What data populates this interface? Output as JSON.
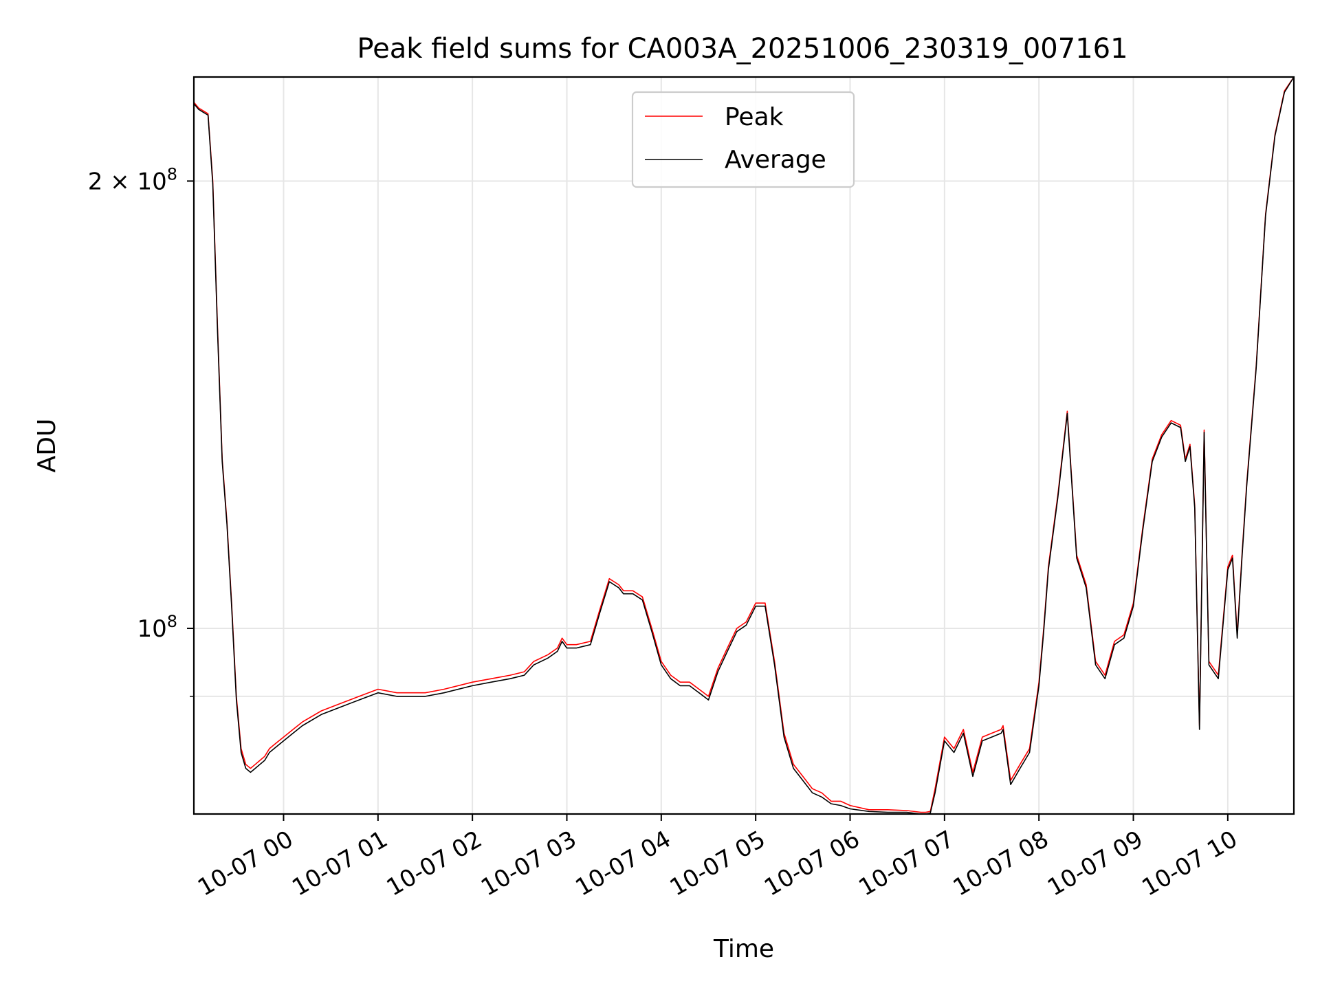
{
  "chart_data": {
    "type": "line",
    "title": "Peak field sums for CA003A_20251006_230319_007161",
    "xlabel": "Time",
    "ylabel": "ADU",
    "x_unit": "hours since 10-07 00:00",
    "xlim": [
      -0.95,
      10.7
    ],
    "ylim": [
      75000000,
      235000000
    ],
    "y_scale": "log",
    "grid": true,
    "legend_position": "top-center",
    "x_ticks": [
      {
        "value": 0,
        "label": "10-07 00"
      },
      {
        "value": 1,
        "label": "10-07 01"
      },
      {
        "value": 2,
        "label": "10-07 02"
      },
      {
        "value": 3,
        "label": "10-07 03"
      },
      {
        "value": 4,
        "label": "10-07 04"
      },
      {
        "value": 5,
        "label": "10-07 05"
      },
      {
        "value": 6,
        "label": "10-07 06"
      },
      {
        "value": 7,
        "label": "10-07 07"
      },
      {
        "value": 8,
        "label": "10-07 08"
      },
      {
        "value": 9,
        "label": "10-07 09"
      },
      {
        "value": 10,
        "label": "10-07 10"
      }
    ],
    "y_ticks": [
      {
        "value": 100000000,
        "base": "10",
        "exp": "8",
        "label": "10^8"
      },
      {
        "value": 200000000,
        "mant": "2 × 10",
        "exp": "8",
        "label": "2 × 10^8"
      }
    ],
    "y_minor_grid": [
      90000000
    ],
    "series": [
      {
        "name": "Peak",
        "color": "#ff0000",
        "x": [
          -0.95,
          -0.9,
          -0.85,
          -0.8,
          -0.75,
          -0.7,
          -0.65,
          -0.6,
          -0.55,
          -0.5,
          -0.45,
          -0.4,
          -0.35,
          -0.3,
          -0.25,
          -0.2,
          -0.15,
          -0.1,
          -0.05,
          0,
          0.1,
          0.2,
          0.4,
          0.6,
          0.8,
          1,
          1.2,
          1.3,
          1.5,
          1.7,
          2,
          2.2,
          2.4,
          2.55,
          2.65,
          2.8,
          2.9,
          2.95,
          3,
          3.1,
          3.25,
          3.35,
          3.45,
          3.55,
          3.6,
          3.7,
          3.8,
          3.9,
          4,
          4.1,
          4.2,
          4.3,
          4.4,
          4.5,
          4.6,
          4.7,
          4.8,
          4.9,
          5,
          5.1,
          5.2,
          5.3,
          5.4,
          5.5,
          5.6,
          5.7,
          5.8,
          5.9,
          6,
          6.2,
          6.4,
          6.6,
          6.75,
          6.8,
          6.85,
          6.9,
          7,
          7.1,
          7.2,
          7.3,
          7.4,
          7.5,
          7.6,
          7.62,
          7.7,
          7.8,
          7.9,
          8,
          8.05,
          8.1,
          8.2,
          8.3,
          8.4,
          8.5,
          8.6,
          8.7,
          8.8,
          8.9,
          9,
          9.1,
          9.2,
          9.3,
          9.4,
          9.5,
          9.55,
          9.6,
          9.65,
          9.7,
          9.75,
          9.8,
          9.9,
          10,
          10.05,
          10.1,
          10.15,
          10.2,
          10.3,
          10.4,
          10.5,
          10.6,
          10.7
        ],
        "values": [
          226000000,
          224000000,
          223000000,
          222000000,
          200000000,
          160000000,
          130000000,
          118000000,
          104000000,
          90000000,
          83000000,
          81000000,
          80500000,
          81000000,
          81500000,
          82000000,
          83000000,
          83500000,
          84000000,
          84500000,
          85500000,
          86500000,
          88000000,
          89000000,
          90000000,
          91000000,
          90500000,
          90500000,
          90500000,
          91000000,
          92000000,
          92500000,
          93000000,
          93500000,
          95000000,
          96000000,
          97000000,
          98500000,
          97500000,
          97500000,
          98000000,
          103000000,
          108000000,
          107000000,
          106000000,
          106000000,
          105000000,
          100000000,
          95000000,
          93000000,
          92000000,
          92000000,
          91000000,
          90000000,
          94000000,
          97000000,
          100000000,
          101000000,
          104000000,
          104000000,
          95000000,
          85000000,
          81000000,
          79500000,
          78000000,
          77500000,
          76500000,
          76500000,
          76000000,
          75500000,
          75500000,
          75400000,
          75200000,
          75200000,
          75300000,
          78000000,
          84500000,
          83000000,
          85500000,
          80000000,
          84500000,
          85000000,
          85500000,
          86000000,
          79000000,
          81000000,
          83000000,
          92000000,
          100000000,
          110000000,
          123000000,
          140000000,
          112000000,
          107000000,
          95000000,
          93000000,
          98000000,
          99000000,
          104000000,
          117000000,
          130000000,
          135000000,
          138000000,
          137000000,
          130000000,
          133000000,
          121000000,
          86000000,
          136000000,
          95000000,
          93000000,
          110000000,
          112000000,
          99000000,
          112000000,
          125000000,
          150000000,
          190000000,
          215000000,
          230000000,
          235000000
        ]
      },
      {
        "name": "Average",
        "color": "#000000",
        "x": [
          -0.95,
          -0.9,
          -0.85,
          -0.8,
          -0.75,
          -0.7,
          -0.65,
          -0.6,
          -0.55,
          -0.5,
          -0.45,
          -0.4,
          -0.35,
          -0.3,
          -0.25,
          -0.2,
          -0.15,
          -0.1,
          -0.05,
          0,
          0.1,
          0.2,
          0.4,
          0.6,
          0.8,
          1,
          1.2,
          1.3,
          1.5,
          1.7,
          2,
          2.2,
          2.4,
          2.55,
          2.65,
          2.8,
          2.9,
          2.95,
          3,
          3.1,
          3.25,
          3.35,
          3.45,
          3.55,
          3.6,
          3.7,
          3.8,
          3.9,
          4,
          4.1,
          4.2,
          4.3,
          4.4,
          4.5,
          4.6,
          4.7,
          4.8,
          4.9,
          5,
          5.1,
          5.2,
          5.3,
          5.4,
          5.5,
          5.6,
          5.7,
          5.8,
          5.9,
          6,
          6.2,
          6.4,
          6.6,
          6.75,
          6.8,
          6.85,
          6.9,
          7,
          7.1,
          7.2,
          7.3,
          7.4,
          7.5,
          7.6,
          7.62,
          7.7,
          7.8,
          7.9,
          8,
          8.05,
          8.1,
          8.2,
          8.3,
          8.4,
          8.5,
          8.6,
          8.7,
          8.8,
          8.9,
          9,
          9.1,
          9.2,
          9.3,
          9.4,
          9.5,
          9.55,
          9.6,
          9.65,
          9.7,
          9.75,
          9.8,
          9.9,
          10,
          10.05,
          10.1,
          10.15,
          10.2,
          10.3,
          10.4,
          10.5,
          10.6,
          10.7
        ],
        "values": [
          225500000,
          223500000,
          222500000,
          221500000,
          199000000,
          159000000,
          129500000,
          117500000,
          103500000,
          89500000,
          82500000,
          80500000,
          80000000,
          80500000,
          81000000,
          81500000,
          82500000,
          83000000,
          83500000,
          84000000,
          85000000,
          86000000,
          87500000,
          88500000,
          89500000,
          90500000,
          90000000,
          90000000,
          90000000,
          90500000,
          91500000,
          92000000,
          92500000,
          93000000,
          94500000,
          95500000,
          96500000,
          98000000,
          97000000,
          97000000,
          97500000,
          102500000,
          107500000,
          106500000,
          105500000,
          105500000,
          104500000,
          99500000,
          94500000,
          92500000,
          91500000,
          91500000,
          90500000,
          89500000,
          93500000,
          96500000,
          99500000,
          100500000,
          103500000,
          103500000,
          94500000,
          84500000,
          80500000,
          79000000,
          77500000,
          77000000,
          76200000,
          76000000,
          75600000,
          75300000,
          75200000,
          75200000,
          75000000,
          75000000,
          75100000,
          77500000,
          84000000,
          82500000,
          85000000,
          79500000,
          84000000,
          84500000,
          85000000,
          85500000,
          78500000,
          80500000,
          82500000,
          91500000,
          99500000,
          109500000,
          122500000,
          139500000,
          111500000,
          106500000,
          94500000,
          92500000,
          97500000,
          98500000,
          103500000,
          116500000,
          129500000,
          134500000,
          137500000,
          136500000,
          129500000,
          132500000,
          120500000,
          85500000,
          135500000,
          94500000,
          92500000,
          109500000,
          111500000,
          98500000,
          111500000,
          124500000,
          149500000,
          189500000,
          214500000,
          229500000,
          235000000
        ]
      }
    ]
  }
}
